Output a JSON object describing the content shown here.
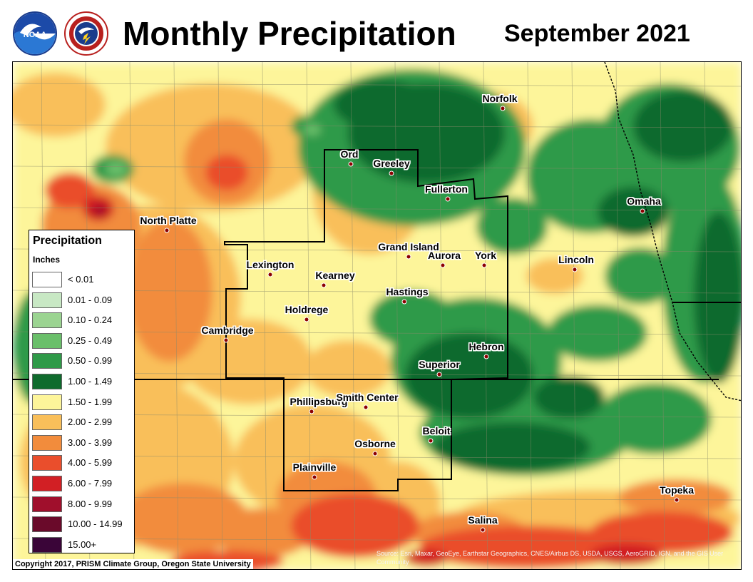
{
  "header": {
    "title": "Monthly Precipitation",
    "date": "September 2021",
    "logos": [
      {
        "name": "noaa-logo",
        "text": "NOAA"
      },
      {
        "name": "nws-logo",
        "text": "NATIONAL WEATHER SERVICE"
      }
    ]
  },
  "legend": {
    "title": "Precipitation",
    "unit": "Inches",
    "items": [
      {
        "label": "< 0.01",
        "color": "#ffffff"
      },
      {
        "label": "0.01 - 0.09",
        "color": "#c8e8c4"
      },
      {
        "label": "0.10 - 0.24",
        "color": "#9bd491"
      },
      {
        "label": "0.25 - 0.49",
        "color": "#6abf6a"
      },
      {
        "label": "0.50 - 0.99",
        "color": "#2f9a48"
      },
      {
        "label": "1.00 - 1.49",
        "color": "#0f6b2d"
      },
      {
        "label": "1.50 - 1.99",
        "color": "#fdf59a"
      },
      {
        "label": "2.00 - 2.99",
        "color": "#f9bf5a"
      },
      {
        "label": "3.00 - 3.99",
        "color": "#f28c3c"
      },
      {
        "label": "4.00 - 5.99",
        "color": "#ea4e2c"
      },
      {
        "label": "6.00 - 7.99",
        "color": "#d21f24"
      },
      {
        "label": "8.00 - 9.99",
        "color": "#a00f2c"
      },
      {
        "label": "10.00 - 14.99",
        "color": "#6a0a2a"
      },
      {
        "label": "15.00+",
        "color": "#3a0538"
      }
    ]
  },
  "cities": [
    {
      "name": "Norfolk"
    },
    {
      "name": "Ord"
    },
    {
      "name": "Greeley"
    },
    {
      "name": "Fullerton"
    },
    {
      "name": "Omaha"
    },
    {
      "name": "North Platte"
    },
    {
      "name": "Grand Island"
    },
    {
      "name": "Aurora"
    },
    {
      "name": "York"
    },
    {
      "name": "Lincoln"
    },
    {
      "name": "Lexington"
    },
    {
      "name": "Kearney"
    },
    {
      "name": "Hastings"
    },
    {
      "name": "Holdrege"
    },
    {
      "name": "Cambridge"
    },
    {
      "name": "Hebron"
    },
    {
      "name": "Superior"
    },
    {
      "name": "Phillipsburg"
    },
    {
      "name": "Smith Center"
    },
    {
      "name": "Beloit"
    },
    {
      "name": "Osborne"
    },
    {
      "name": "Plainville"
    },
    {
      "name": "Topeka"
    },
    {
      "name": "Salina"
    }
  ],
  "footer": {
    "copyright": "Copyright 2017, PRISM Climate Group, Oregon State University",
    "source": "Source: Esri, Maxar, GeoEye, Earthstar Geographics, CNES/Airbus DS, USDA, USGS, AeroGRID, IGN, and the GIS User Community"
  }
}
